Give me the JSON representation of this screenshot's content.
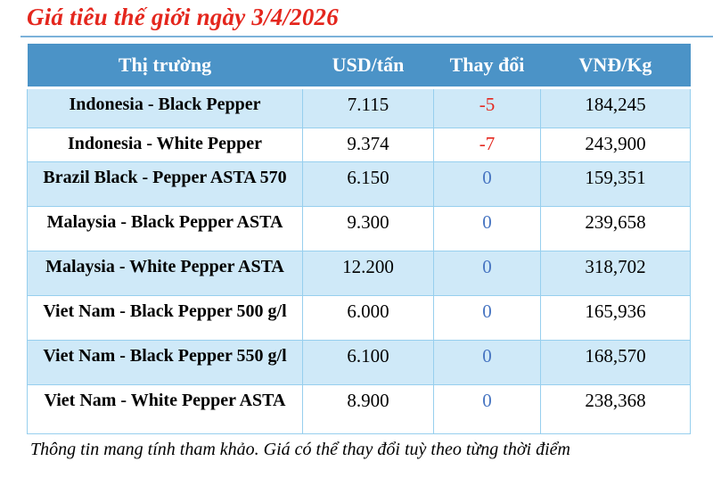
{
  "page": {
    "title": "Giá tiêu thế giới ngày 3/4/2026",
    "footnote": "Thông tin mang tính tham khảo. Giá có thể thay đổi tuỳ theo từng thời điểm"
  },
  "colors": {
    "title_red": "#e4261d",
    "header_bg": "#4b93c7",
    "header_text": "#ffffff",
    "row_alt_bg": "#cfe9f8",
    "row_bg": "#ffffff",
    "cell_border": "#97cfee",
    "negative_change": "#e4261d",
    "zero_change": "#4674c1",
    "title_underline": "#7cb2da"
  },
  "table": {
    "columns": [
      "Thị trường",
      "USD/tấn",
      "Thay đổi",
      "VNĐ/Kg"
    ],
    "rows": [
      {
        "market": "Indonesia - Black Pepper",
        "usd_per_ton": "7.115",
        "change": "-5",
        "vnd_per_kg": "184,245"
      },
      {
        "market": "Indonesia - White Pepper",
        "usd_per_ton": "9.374",
        "change": "-7",
        "vnd_per_kg": "243,900"
      },
      {
        "market": "Brazil Black - Pepper ASTA 570",
        "usd_per_ton": "6.150",
        "change": "0",
        "vnd_per_kg": "159,351"
      },
      {
        "market": "Malaysia - Black Pepper ASTA",
        "usd_per_ton": "9.300",
        "change": "0",
        "vnd_per_kg": "239,658"
      },
      {
        "market": "Malaysia - White Pepper ASTA",
        "usd_per_ton": "12.200",
        "change": "0",
        "vnd_per_kg": "318,702"
      },
      {
        "market": "Viet Nam - Black Pepper 500 g/l",
        "usd_per_ton": "6.000",
        "change": "0",
        "vnd_per_kg": "165,936"
      },
      {
        "market": "Viet Nam - Black Pepper 550 g/l",
        "usd_per_ton": "6.100",
        "change": "0",
        "vnd_per_kg": "168,570"
      },
      {
        "market": "Viet Nam - White Pepper ASTA",
        "usd_per_ton": "8.900",
        "change": "0",
        "vnd_per_kg": "238,368"
      }
    ]
  }
}
